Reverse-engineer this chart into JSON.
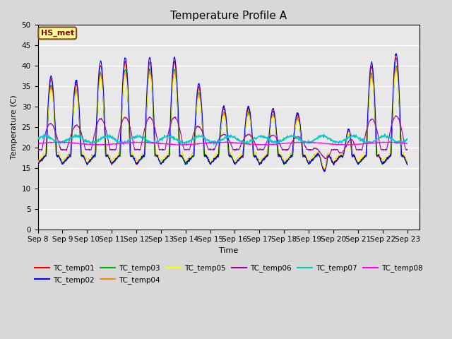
{
  "title": "Temperature Profile A",
  "xlabel": "Time",
  "ylabel": "Temperature (C)",
  "ylim": [
    0,
    50
  ],
  "annotation": "HS_met",
  "series_colors": {
    "TC_temp01": "#FF0000",
    "TC_temp02": "#0000FF",
    "TC_temp03": "#00BB00",
    "TC_temp04": "#FF8800",
    "TC_temp05": "#FFFF00",
    "TC_temp06": "#AA00AA",
    "TC_temp07": "#00CCCC",
    "TC_temp08": "#FF00FF"
  },
  "plot_bg_color": "#E8E8E8",
  "fig_bg_color": "#D8D8D8",
  "title_fontsize": 11,
  "label_fontsize": 8,
  "tick_fontsize": 7.5
}
